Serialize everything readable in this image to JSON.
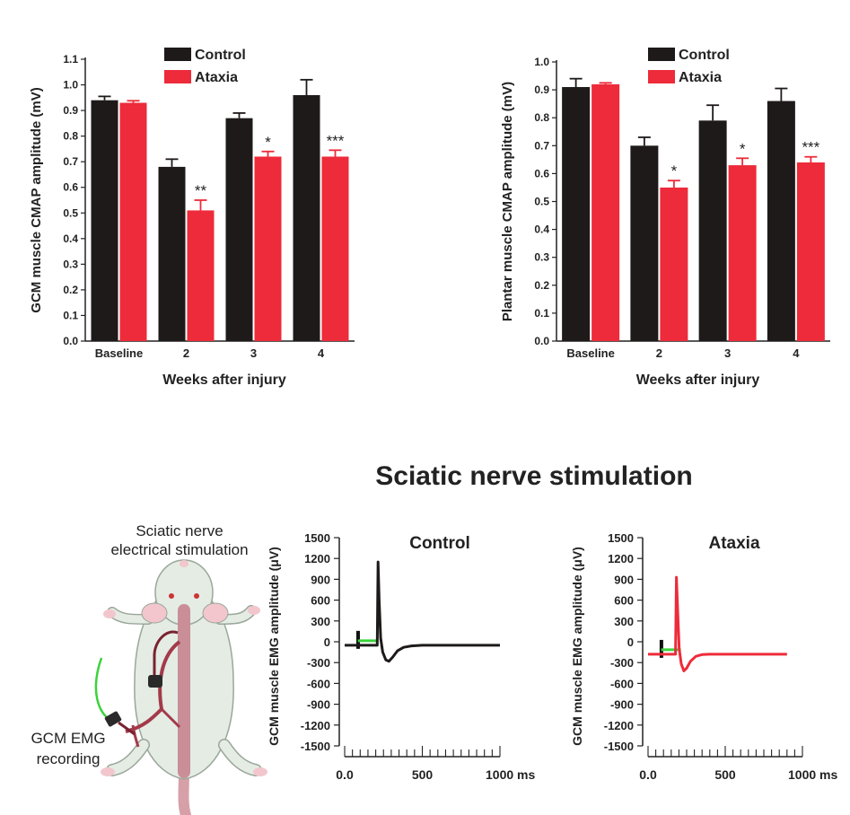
{
  "section_title": "Sciatic nerve stimulation",
  "illustration": {
    "title_line1": "Sciatic nerve",
    "title_line2": "electrical stimulation",
    "recording_line1": "GCM EMG",
    "recording_line2": "recording"
  },
  "colors": {
    "control": "#1f1a1a",
    "ataxia": "#ed2b3a",
    "electrode_wire": "#3cd23c"
  },
  "chart_data": [
    {
      "type": "bar",
      "ylabel": "GCM muscle CMAP amplitude (mV)",
      "xlabel": "Weeks after injury",
      "categories": [
        "Baseline",
        "2",
        "3",
        "4"
      ],
      "ylim": [
        0.0,
        1.1
      ],
      "yticks": [
        "0.0",
        "0.1",
        "0.2",
        "0.3",
        "0.4",
        "0.5",
        "0.6",
        "0.7",
        "0.8",
        "0.9",
        "1.0",
        "1.1"
      ],
      "series": [
        {
          "name": "Control",
          "color": "#1f1a1a",
          "values": [
            0.94,
            0.68,
            0.87,
            0.96
          ],
          "errors": [
            0.015,
            0.03,
            0.02,
            0.06
          ]
        },
        {
          "name": "Ataxia",
          "color": "#ed2b3a",
          "values": [
            0.93,
            0.51,
            0.72,
            0.72
          ],
          "errors": [
            0.008,
            0.04,
            0.02,
            0.025
          ]
        }
      ],
      "significance": [
        "",
        "**",
        "*",
        "***"
      ],
      "legend": "top-left"
    },
    {
      "type": "bar",
      "ylabel": "Plantar muscle CMAP amplitude (mV)",
      "xlabel": "Weeks after injury",
      "categories": [
        "Baseline",
        "2",
        "3",
        "4"
      ],
      "ylim": [
        0.0,
        1.0
      ],
      "yticks": [
        "0.0",
        "0.1",
        "0.2",
        "0.3",
        "0.4",
        "0.5",
        "0.6",
        "0.7",
        "0.8",
        "0.9",
        "1.0"
      ],
      "series": [
        {
          "name": "Control",
          "color": "#1f1a1a",
          "values": [
            0.91,
            0.7,
            0.79,
            0.86
          ],
          "errors": [
            0.03,
            0.03,
            0.055,
            0.045
          ]
        },
        {
          "name": "Ataxia",
          "color": "#ed2b3a",
          "values": [
            0.92,
            0.55,
            0.63,
            0.64
          ],
          "errors": [
            0.005,
            0.025,
            0.025,
            0.02
          ]
        }
      ],
      "significance": [
        "",
        "*",
        "*",
        "***"
      ],
      "legend": "top-left"
    },
    {
      "type": "line",
      "title": "Control",
      "ylabel": "GCM muscle EMG amplitude (μV)",
      "xlim": [
        0,
        1000
      ],
      "x_tick_labels": [
        "0.0",
        "500",
        "1000 ms"
      ],
      "ylim": [
        -1500,
        1500
      ],
      "yticks": [
        "1500",
        "1200",
        "900",
        "600",
        "300",
        "0",
        "-300",
        "-600",
        "-900",
        "-1200",
        "-1500"
      ],
      "series": [
        {
          "color": "#1f1a1a",
          "x": [
            0,
            150,
            200,
            210,
            215,
            222,
            232,
            245,
            265,
            285,
            310,
            340,
            380,
            430,
            500,
            600,
            700,
            800,
            900,
            1000
          ],
          "y": [
            -50,
            -50,
            -50,
            -50,
            1150,
            600,
            50,
            -150,
            -260,
            -280,
            -220,
            -130,
            -80,
            -60,
            -50,
            -50,
            -50,
            -50,
            -50,
            -50
          ]
        }
      ]
    },
    {
      "type": "line",
      "title": "Ataxia",
      "ylabel": "GCM muscle EMG amplitude (μV)",
      "xlim": [
        0,
        1000
      ],
      "x_tick_labels": [
        "0.0",
        "500",
        "1000 ms"
      ],
      "ylim": [
        -1500,
        1500
      ],
      "yticks": [
        "1500",
        "1200",
        "900",
        "600",
        "300",
        "0",
        "-300",
        "-600",
        "-900",
        "-1200",
        "-1500"
      ],
      "series": [
        {
          "color": "#ed2b3a",
          "x": [
            0,
            120,
            170,
            178,
            184,
            192,
            202,
            215,
            232,
            250,
            275,
            310,
            350,
            400,
            500,
            600,
            700,
            800,
            900
          ],
          "y": [
            -180,
            -180,
            -180,
            -180,
            930,
            450,
            -100,
            -320,
            -420,
            -380,
            -280,
            -210,
            -185,
            -180,
            -180,
            -180,
            -180,
            -180,
            -180
          ]
        }
      ]
    }
  ]
}
